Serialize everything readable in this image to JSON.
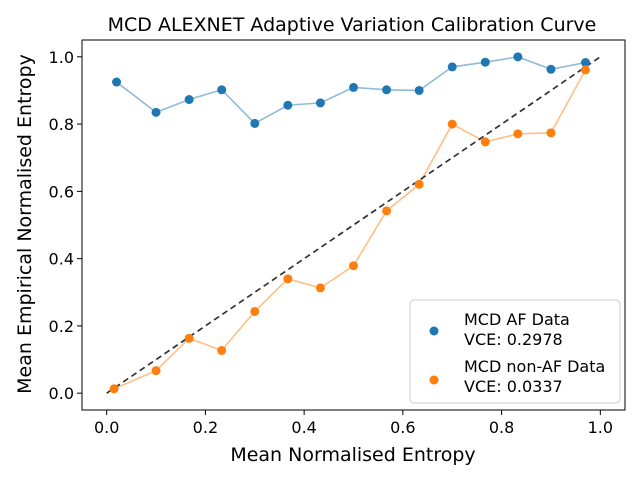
{
  "chart_data": {
    "type": "line",
    "title": "MCD ALEXNET Adaptive Variation Calibration Curve",
    "xlabel": "Mean Normalised Entropy",
    "ylabel": "Mean Empirical Normalised Entropy",
    "xlim": [
      -0.05,
      1.05
    ],
    "ylim": [
      -0.05,
      1.05
    ],
    "xticks": [
      0.0,
      0.2,
      0.4,
      0.6,
      0.8,
      1.0
    ],
    "xtick_labels": [
      "0.0",
      "0.2",
      "0.4",
      "0.6",
      "0.8",
      "1.0"
    ],
    "yticks": [
      0.0,
      0.2,
      0.4,
      0.6,
      0.8,
      1.0
    ],
    "ytick_labels": [
      "0.0",
      "0.2",
      "0.4",
      "0.6",
      "0.8",
      "1.0"
    ],
    "grid": false,
    "legend_position": "bottom-right",
    "reference_line": {
      "x": [
        0,
        1
      ],
      "y": [
        0,
        1
      ],
      "style": "dashed",
      "color": "#333333"
    },
    "series": [
      {
        "name": "MCD AF Data",
        "vce_label": "VCE: 0.2978",
        "color": "#1f77b4",
        "x": [
          0.02,
          0.1,
          0.167,
          0.233,
          0.3,
          0.367,
          0.433,
          0.5,
          0.567,
          0.633,
          0.7,
          0.767,
          0.833,
          0.9,
          0.97
        ],
        "y": [
          0.925,
          0.835,
          0.873,
          0.902,
          0.802,
          0.856,
          0.863,
          0.909,
          0.902,
          0.9,
          0.97,
          0.984,
          1.0,
          0.963,
          0.983
        ]
      },
      {
        "name": "MCD non-AF Data",
        "vce_label": "VCE: 0.0337",
        "color": "#ff7f0e",
        "x": [
          0.015,
          0.1,
          0.167,
          0.233,
          0.3,
          0.367,
          0.433,
          0.5,
          0.567,
          0.633,
          0.7,
          0.767,
          0.833,
          0.9,
          0.97
        ],
        "y": [
          0.013,
          0.067,
          0.163,
          0.127,
          0.243,
          0.34,
          0.313,
          0.379,
          0.542,
          0.621,
          0.8,
          0.747,
          0.771,
          0.774,
          0.961
        ]
      }
    ]
  }
}
